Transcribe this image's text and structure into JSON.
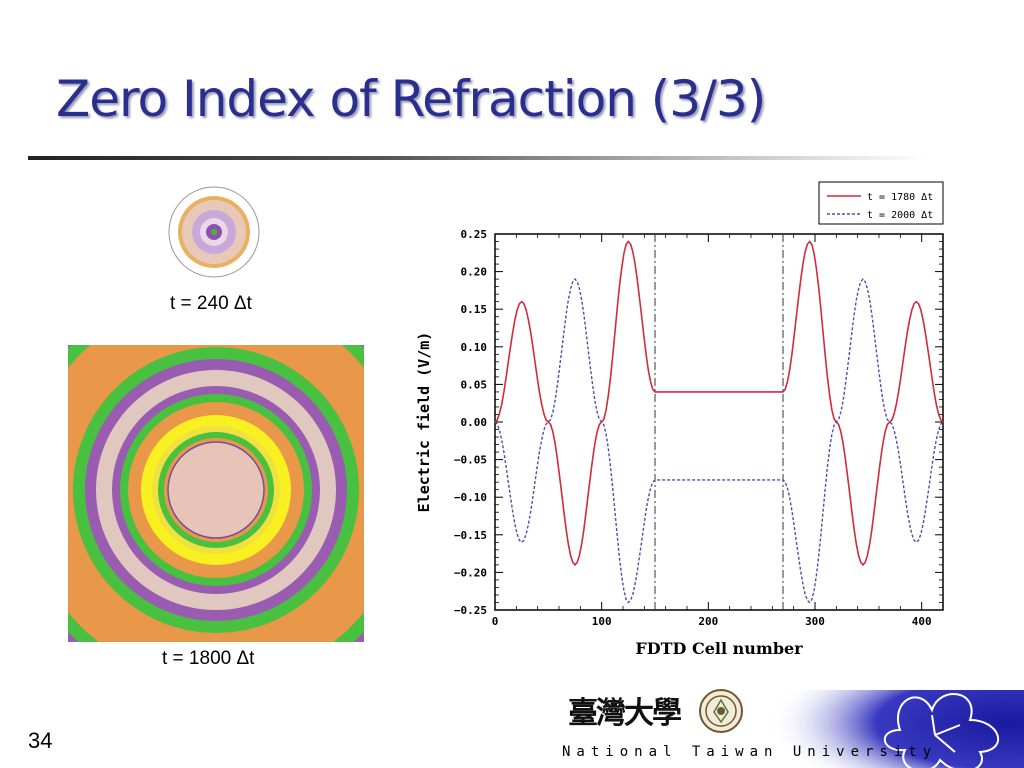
{
  "slide": {
    "title": "Zero Index of Refraction (3/3)",
    "page_number": "34"
  },
  "snapshots": [
    {
      "caption": "t = 240 Δt"
    },
    {
      "caption": "t = 1800 Δt"
    }
  ],
  "colors": {
    "title": "#2a2f8e",
    "solid_series": "#d42a3a",
    "dashed_series": "#4a4fb0",
    "ring_purple": "#9a5cb0",
    "ring_green": "#48c040",
    "ring_orange": "#e89848",
    "ring_pink": "#e0c8c0",
    "ring_yellow": "#f8f020"
  },
  "chart_data": {
    "type": "line",
    "xlabel": "FDTD Cell number",
    "ylabel": "Electric field   (V/m)",
    "xlim": [
      0,
      420
    ],
    "ylim": [
      -0.25,
      0.25
    ],
    "x_ticks": [
      "0",
      "100",
      "200",
      "300",
      "400"
    ],
    "y_ticks": [
      "0.25",
      "0.20",
      "0.15",
      "0.10",
      "0.05",
      "0.00",
      "−0.05",
      "−0.10",
      "−0.15",
      "−0.20",
      "−0.25"
    ],
    "boundaries": [
      150,
      270
    ],
    "legend_position": "top-right, outside",
    "x": [
      0,
      25,
      50,
      75,
      100,
      125,
      150,
      170,
      210,
      250,
      270,
      295,
      320,
      345,
      370,
      395,
      420
    ],
    "series": [
      {
        "name": "t = 1780 Δt",
        "style": "solid",
        "values": [
          0.0,
          0.16,
          0.0,
          -0.19,
          0.0,
          0.24,
          0.04,
          0.04,
          0.04,
          0.04,
          0.04,
          0.24,
          0.0,
          -0.19,
          0.0,
          0.16,
          0.0
        ]
      },
      {
        "name": "t = 2000 Δt",
        "style": "dashed",
        "values": [
          0.0,
          -0.16,
          0.0,
          0.19,
          0.0,
          -0.24,
          -0.077,
          -0.077,
          -0.077,
          -0.077,
          -0.077,
          -0.24,
          0.0,
          0.19,
          0.0,
          -0.16,
          0.0
        ]
      }
    ]
  },
  "footer": {
    "university": "National Taiwan University",
    "calligraphy": "臺灣大學"
  }
}
